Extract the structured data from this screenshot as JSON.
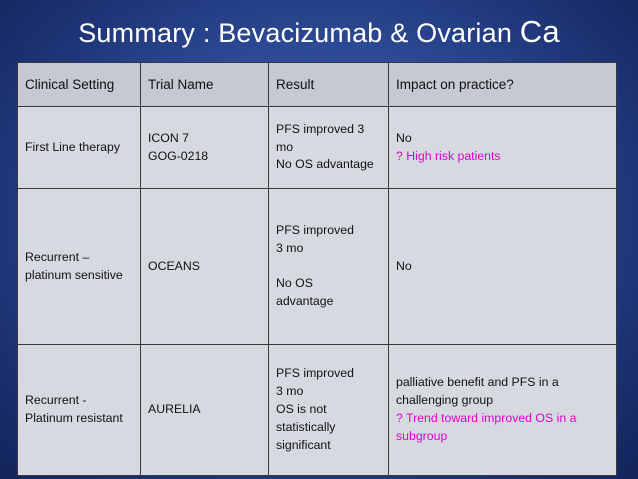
{
  "slide": {
    "title": "Summary : Bevacizumab & Ovarian",
    "title_suffix": "Ca"
  },
  "table": {
    "headers": [
      "Clinical Setting",
      "Trial Name",
      "Result",
      "Impact on practice?"
    ],
    "rows": [
      {
        "setting": "First Line therapy",
        "trials": [
          "ICON 7",
          "GOG-0218"
        ],
        "result": [
          "PFS improved 3 mo",
          "No OS advantage"
        ],
        "impact": "No",
        "impact_note": "? High risk patients"
      },
      {
        "setting": "Recurrent – platinum sensitive",
        "trials": [
          "OCEANS"
        ],
        "result": [
          "PFS improved",
          "3 mo",
          "No OS",
          "advantage"
        ],
        "impact": "No"
      },
      {
        "setting": "Recurrent - Platinum resistant",
        "trials": [
          "AURELIA"
        ],
        "result": [
          "PFS improved",
          "3 mo",
          "OS is not statistically significant"
        ],
        "impact": "palliative benefit and PFS in a challenging group",
        "impact_note": "? Trend toward improved OS in a subgroup"
      }
    ]
  },
  "colors": {
    "background": "#2c4a95",
    "table_body": "#d7d9e1",
    "table_header": "#c6c8d2",
    "note_text": "#e000d0"
  }
}
